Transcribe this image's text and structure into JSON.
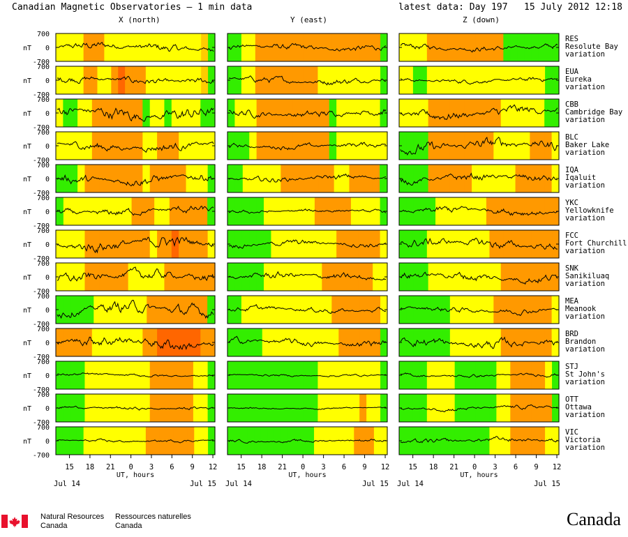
{
  "header": {
    "title": "Canadian Magnetic Observatories – 1 min data",
    "latest": "latest data: Day 197   15 July 2012 12:18 UT"
  },
  "colors": {
    "green": "#33ee00",
    "yellow": "#ffff00",
    "lorange": "#ffcc00",
    "orange": "#ff9900",
    "dorange": "#ff6600",
    "trace": "#000000"
  },
  "chart_data": {
    "type": "line",
    "title": "Canadian Magnetic Observatories – 1 min data",
    "components": [
      "X (north)",
      "Y (east)",
      "Z (down)"
    ],
    "unit": "nT",
    "ylim": [
      -700,
      700
    ],
    "ytick_labels": [
      "700",
      "0",
      "-700"
    ],
    "xlabel": "UT, hours",
    "x_start_hour": 13,
    "x_end_hour": 36.3,
    "xtick_labels": [
      "15",
      "18",
      "21",
      "0",
      "3",
      "6",
      "9",
      "12"
    ],
    "xtick_hours": [
      15,
      18,
      21,
      24,
      27,
      30,
      33,
      36
    ],
    "date_start": "Jul 14",
    "date_end": "Jul 15",
    "stations": [
      {
        "code": "RES",
        "name": "Resolute Bay",
        "label": "variation",
        "amp": [
          280,
          220,
          200
        ],
        "colors": [
          "yyyyoooyyyyyyyyyyyyyylg",
          "ggyyoooooooooooooooooog",
          "yyyyooooooooooogggggggg"
        ]
      },
      {
        "code": "EUA",
        "name": "Eureka",
        "label": "variation",
        "amp": [
          240,
          220,
          150
        ],
        "colors": [
          "yyyyooyyoDoooyyyyyyyylg",
          "ggyyoooooooooyyyyyyyyyg",
          "yyggyyyyyyyyyyyyyyyyygg"
        ]
      },
      {
        "code": "CBB",
        "name": "Cambridge Bay",
        "label": "variation",
        "amp": [
          450,
          250,
          350
        ],
        "colors": [
          "yggyyooooooogyygyyyygg",
          "gyyyoooooooooogyyyyyyg",
          "yyyyooooooooooyyyyyygg"
        ]
      },
      {
        "code": "BLC",
        "name": "Baker Lake",
        "label": "variation",
        "amp": [
          300,
          180,
          380
        ],
        "colors": [
          "yyyyyoooooooyyoooyyyyy",
          "gggyoooooooooogyyyyyyy",
          "ggggoooooooooyyyyyoooy"
        ]
      },
      {
        "code": "IQA",
        "name": "Iqaluit",
        "label": "variation",
        "amp": [
          320,
          200,
          280
        ],
        "colors": [
          "gggyooooooooyoooooyyyg",
          "ggyyyyyoooooooyyoooog",
          "ggggooooooyyyyyyoooooy"
        ]
      },
      {
        "code": "YKC",
        "name": "Yellowknife",
        "label": "variation",
        "amp": [
          260,
          120,
          260
        ],
        "colors": [
          "gyyyyyyyyyoooyyooooog",
          "gggggyyyyyyyoooooyyyyg",
          "gggggyyyyyyyoooooooooo"
        ]
      },
      {
        "code": "FCC",
        "name": "Fort Churchill",
        "label": "variation",
        "amp": [
          420,
          200,
          320
        ],
        "colors": [
          "yyyyoooooooooyooDooooy",
          "ggggggyyyyyyyyyooooooy",
          "ggggyyyyyyyyyoooooooooo"
        ]
      },
      {
        "code": "SNK",
        "name": "Sanikiluaq",
        "label": "variation",
        "amp": [
          350,
          250,
          300
        ],
        "colors": [
          "yyyyooooooyyyyyooooooo",
          "gggggyyyyyyyyoooooooyy",
          "ggggyyyyyyyyyyoooooooo"
        ]
      },
      {
        "code": "MEA",
        "name": "Meanook",
        "label": "variation",
        "amp": [
          400,
          180,
          200
        ],
        "colors": [
          "gggggyyyyyyyoooooooog",
          "ggyyyyyyyyyyyyyoooooooy",
          "gggggggyyyyyyooooooooy"
        ]
      },
      {
        "code": "BRD",
        "name": "Brandon",
        "label": "variation",
        "amp": [
          420,
          230,
          320
        ],
        "colors": [
          "oooooyyyyyyyooDDDDDDoo",
          "gggggyyyyyyyyyyyoooooog",
          "gggggggyyyyyyyoooooooy"
        ]
      },
      {
        "code": "STJ",
        "name": "St John's",
        "label": "variation",
        "amp": [
          100,
          80,
          120
        ],
        "colors": [
          "ggggyyyyyyyyyooooooyyg",
          "gggggggggggggyyyyyyyyyg",
          "ggggyyyyggggggyyoooooyg"
        ]
      },
      {
        "code": "OTT",
        "name": "Ottawa",
        "label": "variation",
        "amp": [
          110,
          60,
          140
        ],
        "colors": [
          "ggggyyyyyyyyyooooooyyg",
          "gggggggggggggyyyyyyoyyg",
          "ggggyyyyggggggyyoooooog"
        ]
      },
      {
        "code": "VIC",
        "name": "Victoria",
        "label": "variation",
        "amp": [
          90,
          100,
          180
        ],
        "colors": [
          "ggggyyyyyyyyyoooooooyyg",
          "gggggggggggggyyyyyyoooyy",
          "gggggggggggggyyyoooooyy"
        ]
      }
    ]
  },
  "footer": {
    "nrcan_en1": "Natural Resources",
    "nrcan_en2": "Canada",
    "nrcan_fr1": "Ressources naturelles",
    "nrcan_fr2": "Canada",
    "wordmark": "Canada"
  }
}
